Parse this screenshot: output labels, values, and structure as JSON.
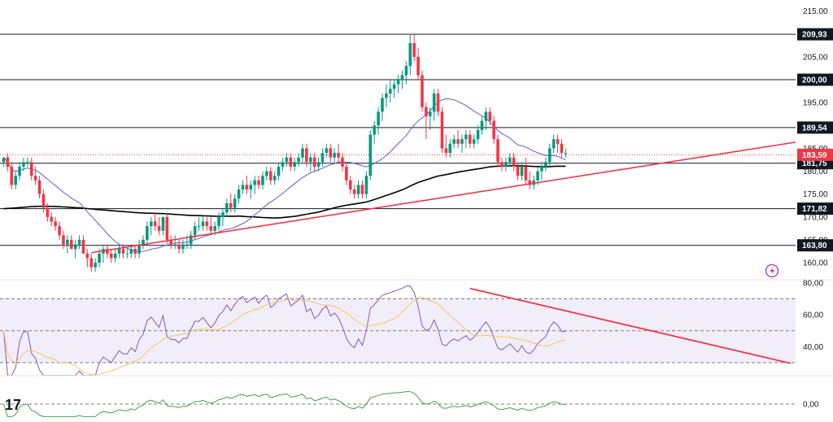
{
  "chart_data": [
    {
      "type": "candlestick",
      "instrument_logo": "TradingView",
      "y_range": [
        157,
        216
      ],
      "y_ticks": [
        "215,00",
        "205,00",
        "195,00",
        "185,00",
        "180,00",
        "175,00",
        "170,00",
        "165,00",
        "160,00"
      ],
      "horizontal_levels": [
        {
          "value": 209.93,
          "label": "209,93"
        },
        {
          "value": 200.0,
          "label": "200,00"
        },
        {
          "value": 189.54,
          "label": "189,54"
        },
        {
          "value": 181.75,
          "label": "181,75"
        },
        {
          "value": 171.82,
          "label": "171,82"
        },
        {
          "value": 163.8,
          "label": "163,80"
        }
      ],
      "last_price": {
        "value": 183.59,
        "label": "183,59",
        "color": "#f23645"
      },
      "trendline": {
        "from": {
          "bar": 22,
          "value": 162.2
        },
        "to": {
          "bar": 183,
          "value": 184.2
        },
        "color": "#f23645"
      },
      "ma_fast_color": "#5b5bd6",
      "ma_slow_color": "#000000",
      "up_color": "#089981",
      "down_color": "#f23645",
      "ohlc": [
        [
          182,
          183,
          181,
          183
        ],
        [
          183,
          184,
          180,
          181
        ],
        [
          181,
          182,
          176,
          177
        ],
        [
          177,
          180,
          176,
          179
        ],
        [
          179,
          182,
          178,
          181
        ],
        [
          181,
          183,
          180,
          182
        ],
        [
          182,
          183,
          181,
          182
        ],
        [
          182,
          183,
          178,
          179
        ],
        [
          179,
          181,
          177,
          178
        ],
        [
          178,
          179,
          174,
          175
        ],
        [
          175,
          176,
          171,
          172
        ],
        [
          172,
          173,
          169,
          170
        ],
        [
          170,
          171,
          168,
          169
        ],
        [
          169,
          170,
          167,
          168
        ],
        [
          168,
          169,
          165,
          166
        ],
        [
          166,
          167,
          163,
          164
        ],
        [
          164,
          166,
          162,
          165
        ],
        [
          165,
          166,
          163,
          163
        ],
        [
          163,
          165,
          161,
          164
        ],
        [
          164,
          166,
          163,
          165
        ],
        [
          165,
          166,
          162,
          162
        ],
        [
          162,
          163,
          159,
          161
        ],
        [
          161,
          162,
          158,
          159
        ],
        [
          159,
          161,
          158,
          160
        ],
        [
          160,
          163,
          159,
          162
        ],
        [
          162,
          164,
          160,
          163
        ],
        [
          163,
          164,
          161,
          162
        ],
        [
          162,
          163,
          160,
          161
        ],
        [
          161,
          163,
          160,
          162
        ],
        [
          162,
          164,
          161,
          163
        ],
        [
          163,
          164,
          161,
          162
        ],
        [
          162,
          163,
          161,
          162
        ],
        [
          162,
          164,
          161,
          163
        ],
        [
          163,
          164,
          161,
          162
        ],
        [
          162,
          165,
          161,
          164
        ],
        [
          164,
          166,
          163,
          165
        ],
        [
          165,
          169,
          164,
          168
        ],
        [
          168,
          170,
          166,
          169
        ],
        [
          169,
          171,
          167,
          168
        ],
        [
          168,
          170,
          166,
          167
        ],
        [
          167,
          170,
          166,
          170
        ],
        [
          170,
          171,
          164,
          165
        ],
        [
          165,
          166,
          163,
          164
        ],
        [
          164,
          166,
          163,
          164
        ],
        [
          164,
          165,
          162,
          163
        ],
        [
          163,
          165,
          162,
          164
        ],
        [
          164,
          166,
          163,
          164
        ],
        [
          164,
          167,
          163,
          166
        ],
        [
          166,
          169,
          165,
          168
        ],
        [
          168,
          170,
          167,
          168
        ],
        [
          168,
          170,
          167,
          169
        ],
        [
          169,
          170,
          167,
          168
        ],
        [
          168,
          170,
          166,
          167
        ],
        [
          167,
          169,
          166,
          168
        ],
        [
          168,
          171,
          167,
          170
        ],
        [
          170,
          172,
          168,
          171
        ],
        [
          171,
          174,
          170,
          173
        ],
        [
          173,
          175,
          171,
          172
        ],
        [
          172,
          175,
          171,
          174
        ],
        [
          174,
          177,
          173,
          176
        ],
        [
          176,
          178,
          175,
          177
        ],
        [
          177,
          179,
          175,
          176
        ],
        [
          176,
          178,
          174,
          177
        ],
        [
          177,
          179,
          175,
          178
        ],
        [
          178,
          179,
          176,
          177
        ],
        [
          177,
          180,
          176,
          179
        ],
        [
          179,
          181,
          178,
          180
        ],
        [
          180,
          181,
          177,
          178
        ],
        [
          178,
          180,
          177,
          179
        ],
        [
          179,
          182,
          178,
          181
        ],
        [
          181,
          183,
          180,
          182
        ],
        [
          182,
          184,
          181,
          183
        ],
        [
          183,
          184,
          180,
          181
        ],
        [
          181,
          183,
          180,
          182
        ],
        [
          182,
          184,
          181,
          183
        ],
        [
          183,
          186,
          182,
          185
        ],
        [
          185,
          186,
          181,
          182
        ],
        [
          182,
          184,
          180,
          183
        ],
        [
          183,
          184,
          180,
          181
        ],
        [
          181,
          183,
          180,
          182
        ],
        [
          182,
          185,
          181,
          184
        ],
        [
          184,
          186,
          183,
          185
        ],
        [
          185,
          186,
          182,
          183
        ],
        [
          183,
          185,
          182,
          184
        ],
        [
          184,
          186,
          182,
          183
        ],
        [
          183,
          184,
          180,
          181
        ],
        [
          181,
          182,
          177,
          178
        ],
        [
          178,
          179,
          175,
          176
        ],
        [
          176,
          177,
          174,
          175
        ],
        [
          175,
          178,
          174,
          177
        ],
        [
          177,
          178,
          174,
          175
        ],
        [
          175,
          180,
          174,
          179
        ],
        [
          179,
          189,
          178,
          188
        ],
        [
          188,
          191,
          186,
          190
        ],
        [
          190,
          194,
          188,
          193
        ],
        [
          193,
          197,
          191,
          196
        ],
        [
          196,
          199,
          194,
          197
        ],
        [
          197,
          200,
          195,
          198
        ],
        [
          198,
          200,
          196,
          199
        ],
        [
          199,
          201,
          197,
          200
        ],
        [
          200,
          202,
          198,
          201
        ],
        [
          201,
          204,
          199,
          203
        ],
        [
          203,
          210,
          201,
          208
        ],
        [
          208,
          210,
          204,
          205
        ],
        [
          205,
          207,
          200,
          201
        ],
        [
          201,
          202,
          193,
          194
        ],
        [
          194,
          195,
          187,
          192
        ],
        [
          192,
          194,
          189,
          193
        ],
        [
          193,
          198,
          191,
          197
        ],
        [
          197,
          198,
          192,
          193
        ],
        [
          193,
          194,
          184,
          185
        ],
        [
          185,
          188,
          183,
          184
        ],
        [
          184,
          187,
          183,
          186
        ],
        [
          186,
          188,
          185,
          187
        ],
        [
          187,
          189,
          185,
          186
        ],
        [
          186,
          188,
          184,
          187
        ],
        [
          187,
          189,
          185,
          188
        ],
        [
          188,
          189,
          185,
          186
        ],
        [
          186,
          188,
          185,
          187
        ],
        [
          187,
          190,
          186,
          189
        ],
        [
          189,
          192,
          188,
          191
        ],
        [
          191,
          194,
          189,
          193
        ],
        [
          193,
          194,
          190,
          191
        ],
        [
          191,
          192,
          186,
          187
        ],
        [
          187,
          188,
          181,
          182
        ],
        [
          182,
          183,
          180,
          181
        ],
        [
          181,
          183,
          180,
          182
        ],
        [
          182,
          184,
          181,
          183
        ],
        [
          183,
          184,
          180,
          181
        ],
        [
          181,
          182,
          178,
          179
        ],
        [
          179,
          182,
          178,
          181
        ],
        [
          181,
          183,
          177,
          178
        ],
        [
          178,
          180,
          176,
          177
        ],
        [
          177,
          179,
          176,
          178
        ],
        [
          178,
          181,
          177,
          180
        ],
        [
          180,
          182,
          178,
          181
        ],
        [
          181,
          183,
          180,
          182
        ],
        [
          182,
          186,
          181,
          185
        ],
        [
          185,
          188,
          184,
          187
        ],
        [
          187,
          188,
          184,
          186
        ],
        [
          186,
          187,
          183,
          184
        ],
        [
          184,
          185,
          183,
          184
        ]
      ]
    },
    {
      "type": "line",
      "indicator": "RSI",
      "y_range": [
        30,
        82
      ],
      "y_ticks": [
        "80,00",
        "60,00",
        "40,00"
      ],
      "band_upper": 70,
      "band_middle": 50,
      "band_lower": 30,
      "rsi_color": "#7e57c2",
      "signal_color": "#f7c35c",
      "trendline": {
        "from": {
          "bar": 117,
          "value": 76.5
        },
        "to": {
          "bar": 183,
          "value": 38
        },
        "color": "#f23645"
      }
    },
    {
      "type": "line",
      "indicator": "oscillator",
      "y_ticks": [
        "0,00"
      ],
      "line_color": "#43a047"
    }
  ]
}
